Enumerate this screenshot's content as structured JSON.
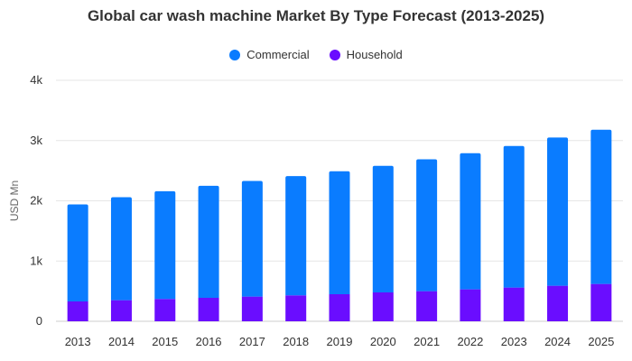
{
  "chart_data": {
    "type": "bar",
    "stacked": true,
    "title": "Global car wash machine Market By Type Forecast (2013-2025)",
    "xlabel": "",
    "ylabel": "USD Mn",
    "ylim": [
      0,
      4000
    ],
    "yticks": [
      0,
      1000,
      2000,
      3000,
      4000
    ],
    "ytick_labels": [
      "0",
      "1k",
      "2k",
      "3k",
      "4k"
    ],
    "grid": true,
    "legend_position": "top-center",
    "categories": [
      "2013",
      "2014",
      "2015",
      "2016",
      "2017",
      "2018",
      "2019",
      "2020",
      "2021",
      "2022",
      "2023",
      "2024",
      "2025"
    ],
    "series": [
      {
        "name": "Household",
        "color": "#6a0dff",
        "values": [
          330,
          350,
          370,
          390,
          410,
          430,
          450,
          480,
          500,
          530,
          560,
          590,
          620
        ]
      },
      {
        "name": "Commercial",
        "color": "#0a7cff",
        "values": [
          1610,
          1710,
          1790,
          1860,
          1920,
          1980,
          2040,
          2100,
          2190,
          2260,
          2350,
          2460,
          2560
        ]
      }
    ]
  }
}
